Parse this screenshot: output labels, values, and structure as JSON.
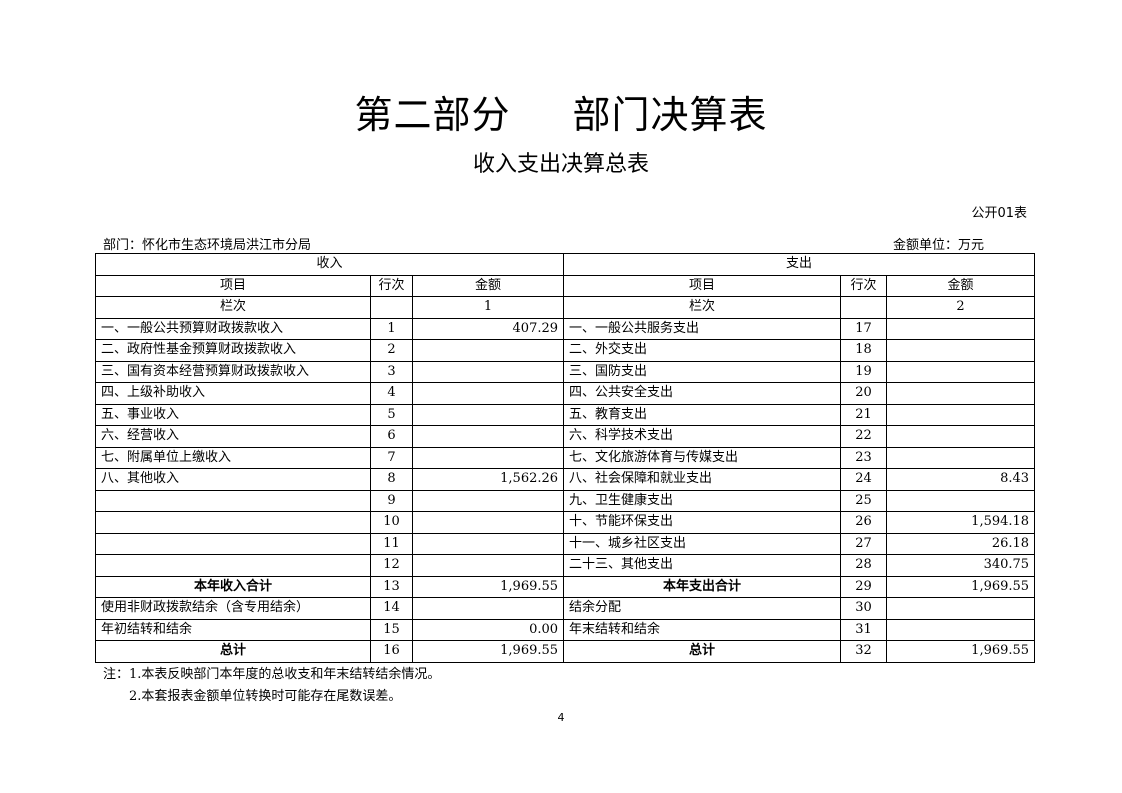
{
  "header": {
    "title_part": "第二部分",
    "title_main": "部门决算表",
    "subtitle": "收入支出决算总表",
    "form_no": "公开01表",
    "department": "部门：怀化市生态环境局洪江市分局",
    "unit": "金额单位：万元"
  },
  "table": {
    "income_header": "收入",
    "expense_header": "支出",
    "col_item": "项目",
    "col_line": "行次",
    "col_amount": "金额",
    "col_index_label": "栏次",
    "income_col_index": "1",
    "expense_col_index": "2",
    "rows": [
      {
        "li": "一、一般公共预算财政拨款收入",
        "ln": "1",
        "la": "407.29",
        "ri": "一、一般公共服务支出",
        "rn": "17",
        "ra": ""
      },
      {
        "li": "二、政府性基金预算财政拨款收入",
        "ln": "2",
        "la": "",
        "ri": "二、外交支出",
        "rn": "18",
        "ra": ""
      },
      {
        "li": "三、国有资本经营预算财政拨款收入",
        "ln": "3",
        "la": "",
        "ri": "三、国防支出",
        "rn": "19",
        "ra": ""
      },
      {
        "li": "四、上级补助收入",
        "ln": "4",
        "la": "",
        "ri": "四、公共安全支出",
        "rn": "20",
        "ra": ""
      },
      {
        "li": "五、事业收入",
        "ln": "5",
        "la": "",
        "ri": "五、教育支出",
        "rn": "21",
        "ra": ""
      },
      {
        "li": "六、经营收入",
        "ln": "6",
        "la": "",
        "ri": "六、科学技术支出",
        "rn": "22",
        "ra": ""
      },
      {
        "li": "七、附属单位上缴收入",
        "ln": "7",
        "la": "",
        "ri": "七、文化旅游体育与传媒支出",
        "rn": "23",
        "ra": ""
      },
      {
        "li": "八、其他收入",
        "ln": "8",
        "la": "1,562.26",
        "ri": "八、社会保障和就业支出",
        "rn": "24",
        "ra": "8.43"
      },
      {
        "li": "",
        "ln": "9",
        "la": "",
        "ri": "九、卫生健康支出",
        "rn": "25",
        "ra": ""
      },
      {
        "li": "",
        "ln": "10",
        "la": "",
        "ri": "十、节能环保支出",
        "rn": "26",
        "ra": "1,594.18"
      },
      {
        "li": "",
        "ln": "11",
        "la": "",
        "ri": "十一、城乡社区支出",
        "rn": "27",
        "ra": "26.18"
      },
      {
        "li": "",
        "ln": "12",
        "la": "",
        "ri": "二十三、其他支出",
        "rn": "28",
        "ra": "340.75"
      },
      {
        "li": "本年收入合计",
        "ln": "13",
        "la": "1,969.55",
        "ri": "本年支出合计",
        "rn": "29",
        "ra": "1,969.55",
        "bold": true
      },
      {
        "li": "使用非财政拨款结余（含专用结余）",
        "ln": "14",
        "la": "",
        "ri": "结余分配",
        "rn": "30",
        "ra": ""
      },
      {
        "li": "年初结转和结余",
        "ln": "15",
        "la": "0.00",
        "ri": "年末结转和结余",
        "rn": "31",
        "ra": ""
      },
      {
        "li": "总计",
        "ln": "16",
        "la": "1,969.55",
        "ri": "总计",
        "rn": "32",
        "ra": "1,969.55",
        "bold": true
      }
    ]
  },
  "notes": {
    "note1": "注：1.本表反映部门本年度的总收支和年末结转结余情况。",
    "note2": "2.本套报表金额单位转换时可能存在尾数误差。"
  },
  "page_number": "4"
}
